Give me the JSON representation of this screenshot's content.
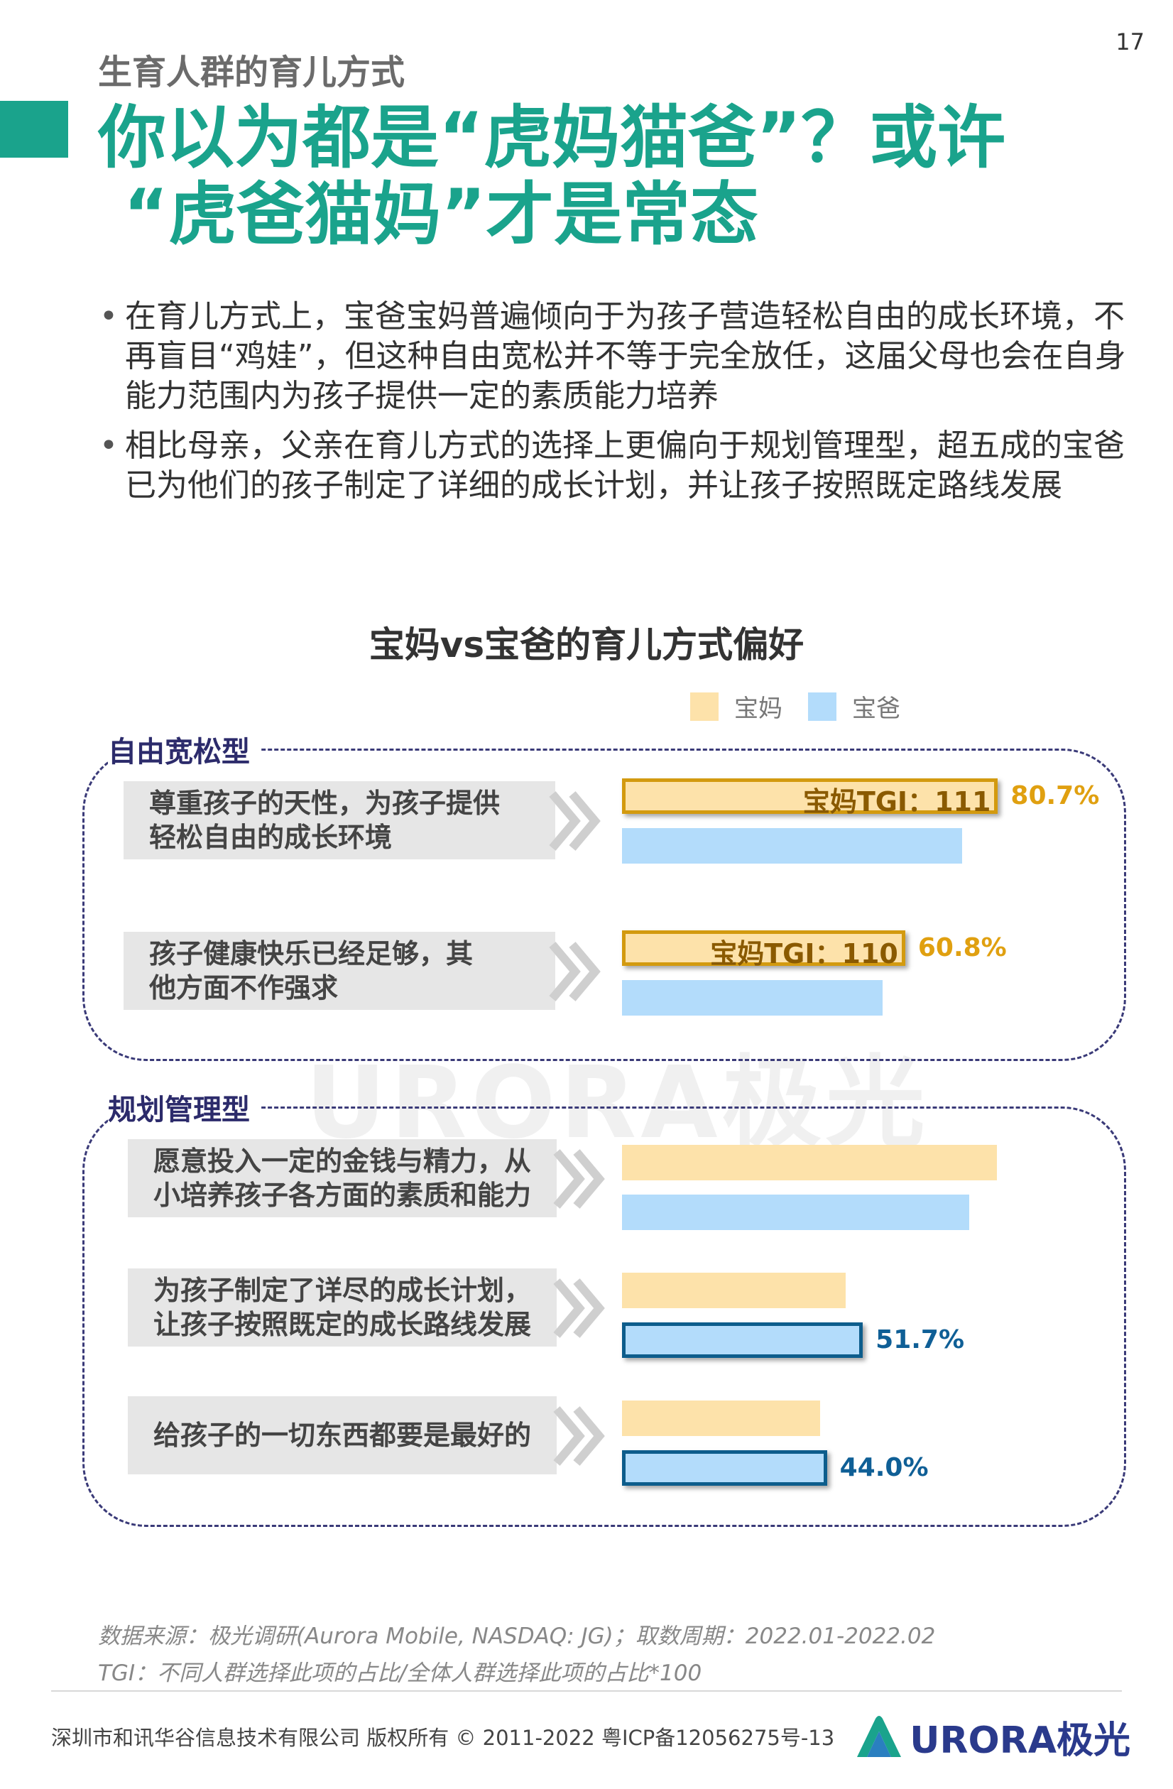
{
  "page_number": "17",
  "subtitle": "生育人群的育儿方式",
  "headline": {
    "line1": "你以为都是“虎妈猫爸”？或许",
    "line2": "“虎爸猫妈”才是常态"
  },
  "bullets": [
    "在育儿方式上，宝爸宝妈普遍倾向于为孩子营造轻松自由的成长环境，不再盲目“鸡娃”，但这种自由宽松并不等于完全放任，这届父母也会在自身能力范围内为孩子提供一定的素质能力培养",
    "相比母亲，父亲在育儿方式的选择上更偏向于规划管理型，超五成的宝爸已为他们的孩子制定了详细的成长计划，并让孩子按照既定路线发展"
  ],
  "watermark": "URORA极光",
  "chart_data": {
    "type": "bar",
    "orientation": "horizontal",
    "title": "宝妈vs宝爸的育儿方式偏好",
    "legend": [
      "宝妈",
      "宝爸"
    ],
    "legend_position": "top-right",
    "colors": {
      "mom": "#fde2aa",
      "dad": "#b3dcfb",
      "mom_border": "#d39a0f",
      "dad_border": "#0d5d8c"
    },
    "xlim": [
      0,
      100
    ],
    "groups": [
      {
        "label": "自由宽松型",
        "items": [
          {
            "category": "尊重孩子的天性，为孩子提供轻松自由的成长环境",
            "mom": 80.7,
            "dad": 73.0,
            "highlight": "mom",
            "tgi": "宝妈TGI：111",
            "label": "80.7%"
          },
          {
            "category": "孩子健康快乐已经足够，其他方面不作强求",
            "mom": 60.8,
            "dad": 56.0,
            "highlight": "mom",
            "tgi": "宝妈TGI：110",
            "label": "60.8%"
          }
        ]
      },
      {
        "label": "规划管理型",
        "items": [
          {
            "category": "愿意投入一定的金钱与精力，从小培养孩子各方面的素质和能力",
            "mom": 80.5,
            "dad": 74.5,
            "highlight": "",
            "tgi": "",
            "label": ""
          },
          {
            "category": "为孩子制定了详尽的成长计划，让孩子按照既定的成长路线发展",
            "mom": 48.0,
            "dad": 51.7,
            "highlight": "dad",
            "tgi": "",
            "label": "51.7%"
          },
          {
            "category": "给孩子的一切东西都要是最好的",
            "mom": 42.5,
            "dad": 44.0,
            "highlight": "dad",
            "tgi": "",
            "label": "44.0%"
          }
        ]
      }
    ]
  },
  "source_lines": [
    "数据来源：极光调研(Aurora Mobile, NASDAQ: JG)；取数周期：2022.01-2022.02",
    "TGI：不同人群选择此项的占比/全体人群选择此项的占比*100"
  ],
  "footer": {
    "copyright": "深圳市和讯华谷信息技术有限公司 版权所有 © 2011-2022 粤ICP备12056275号-13",
    "logo_text": "URORA极光",
    "logo_color": "#2a3a8c",
    "logo_icon": "aurora-logo-icon"
  },
  "accent_color": "#1aa38c"
}
